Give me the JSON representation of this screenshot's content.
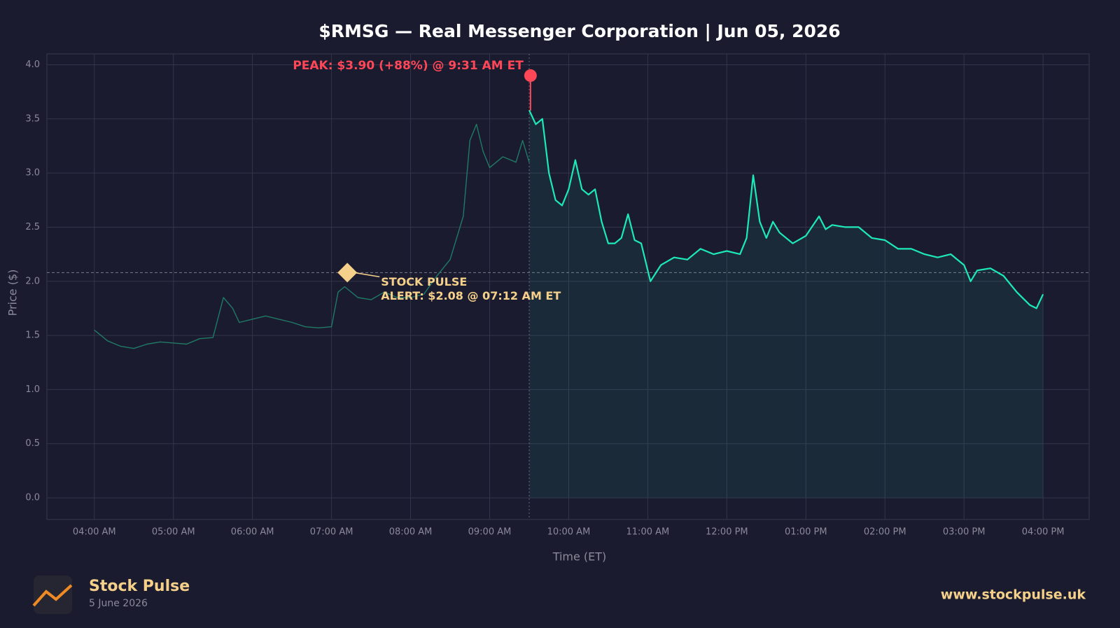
{
  "chart_data": {
    "type": "line",
    "title": "$RMSG — Real Messenger Corporation  |  Jun 05, 2026",
    "xlabel": "Time (ET)",
    "ylabel": "Price ($)",
    "xlim": [
      "03:24",
      "16:35"
    ],
    "xticks": [
      {
        "value": "04:00",
        "label": "04:00 AM"
      },
      {
        "value": "05:00",
        "label": "05:00 AM"
      },
      {
        "value": "06:00",
        "label": "06:00 AM"
      },
      {
        "value": "07:00",
        "label": "07:00 AM"
      },
      {
        "value": "08:00",
        "label": "08:00 AM"
      },
      {
        "value": "09:00",
        "label": "09:00 AM"
      },
      {
        "value": "10:00",
        "label": "10:00 AM"
      },
      {
        "value": "11:00",
        "label": "11:00 AM"
      },
      {
        "value": "12:00",
        "label": "12:00 PM"
      },
      {
        "value": "13:00",
        "label": "01:00 PM"
      },
      {
        "value": "14:00",
        "label": "02:00 PM"
      },
      {
        "value": "15:00",
        "label": "03:00 PM"
      },
      {
        "value": "16:00",
        "label": "04:00 PM"
      }
    ],
    "ylim": [
      -0.2,
      4.1
    ],
    "yticks": [
      {
        "value": 0,
        "label": "0.0"
      },
      {
        "value": 0.5,
        "label": "0.5"
      },
      {
        "value": 1,
        "label": "1.0"
      },
      {
        "value": 1.5,
        "label": "1.5"
      },
      {
        "value": 2,
        "label": "2.0"
      },
      {
        "value": 2.5,
        "label": "2.5"
      },
      {
        "value": 3,
        "label": "3.0"
      },
      {
        "value": 3.5,
        "label": "3.5"
      },
      {
        "value": 4,
        "label": "4.0"
      }
    ],
    "grid": true,
    "series": [
      {
        "color": "#1f7a66",
        "fill": false,
        "x": [
          "04:00",
          "04:10",
          "04:20",
          "04:30",
          "04:40",
          "04:50",
          "05:00",
          "05:10",
          "05:20",
          "05:30",
          "05:38",
          "05:45",
          "05:50",
          "06:00",
          "06:10",
          "06:20",
          "06:30",
          "06:40",
          "06:50",
          "07:00",
          "07:05",
          "07:10",
          "07:20",
          "07:30",
          "07:40",
          "07:50",
          "08:00",
          "08:10",
          "08:20",
          "08:30",
          "08:40",
          "08:45",
          "08:50",
          "08:55",
          "09:00",
          "09:05",
          "09:10",
          "09:20",
          "09:25",
          "09:30"
        ],
        "values": [
          1.55,
          1.45,
          1.4,
          1.38,
          1.42,
          1.44,
          1.43,
          1.42,
          1.47,
          1.48,
          1.85,
          1.75,
          1.62,
          1.65,
          1.68,
          1.65,
          1.62,
          1.58,
          1.57,
          1.58,
          1.9,
          1.95,
          1.85,
          1.83,
          1.9,
          1.85,
          1.85,
          1.88,
          2.05,
          2.2,
          2.6,
          3.3,
          3.45,
          3.2,
          3.05,
          3.1,
          3.15,
          3.1,
          3.3,
          3.1
        ]
      },
      {
        "color": "#1de9b6",
        "fill": true,
        "x": [
          "09:30",
          "09:35",
          "09:40",
          "09:45",
          "09:50",
          "09:55",
          "10:00",
          "10:05",
          "10:10",
          "10:15",
          "10:20",
          "10:25",
          "10:30",
          "10:35",
          "10:40",
          "10:45",
          "10:50",
          "10:55",
          "11:00",
          "11:02",
          "11:10",
          "11:20",
          "11:30",
          "11:40",
          "11:50",
          "12:00",
          "12:10",
          "12:15",
          "12:20",
          "12:25",
          "12:30",
          "12:35",
          "12:40",
          "12:50",
          "13:00",
          "13:10",
          "13:15",
          "13:20",
          "13:30",
          "13:40",
          "13:50",
          "14:00",
          "14:10",
          "14:20",
          "14:30",
          "14:40",
          "14:50",
          "15:00",
          "15:05",
          "15:10",
          "15:20",
          "15:30",
          "15:40",
          "15:50",
          "15:55",
          "16:00"
        ],
        "values": [
          3.58,
          3.45,
          3.5,
          3.0,
          2.75,
          2.7,
          2.85,
          3.12,
          2.85,
          2.8,
          2.85,
          2.55,
          2.35,
          2.35,
          2.4,
          2.62,
          2.38,
          2.35,
          2.1,
          2.0,
          2.15,
          2.22,
          2.2,
          2.3,
          2.25,
          2.28,
          2.25,
          2.4,
          2.98,
          2.55,
          2.4,
          2.55,
          2.45,
          2.35,
          2.42,
          2.6,
          2.48,
          2.52,
          2.5,
          2.5,
          2.4,
          2.38,
          2.3,
          2.3,
          2.25,
          2.22,
          2.25,
          2.15,
          2.0,
          2.1,
          2.12,
          2.05,
          1.9,
          1.78,
          1.75,
          1.88
        ]
      }
    ],
    "session_start": "09:30",
    "annotations": [
      {
        "text": [
          "PEAK: $3.90 (+88%) @ 9:31 AM ET"
        ],
        "x": "09:31",
        "y": 3.9,
        "color": "#ff4757",
        "marker": "circle"
      },
      {
        "text": [
          "STOCK PULSE",
          "ALERT: $2.08 @ 07:12 AM ET"
        ],
        "x": "07:12",
        "y": 2.08,
        "color": "#f5d08a",
        "marker": "diamond",
        "refline": true
      }
    ]
  },
  "footer": {
    "brand": "Stock Pulse",
    "date": "5 June 2026",
    "url": "www.stockpulse.uk"
  }
}
